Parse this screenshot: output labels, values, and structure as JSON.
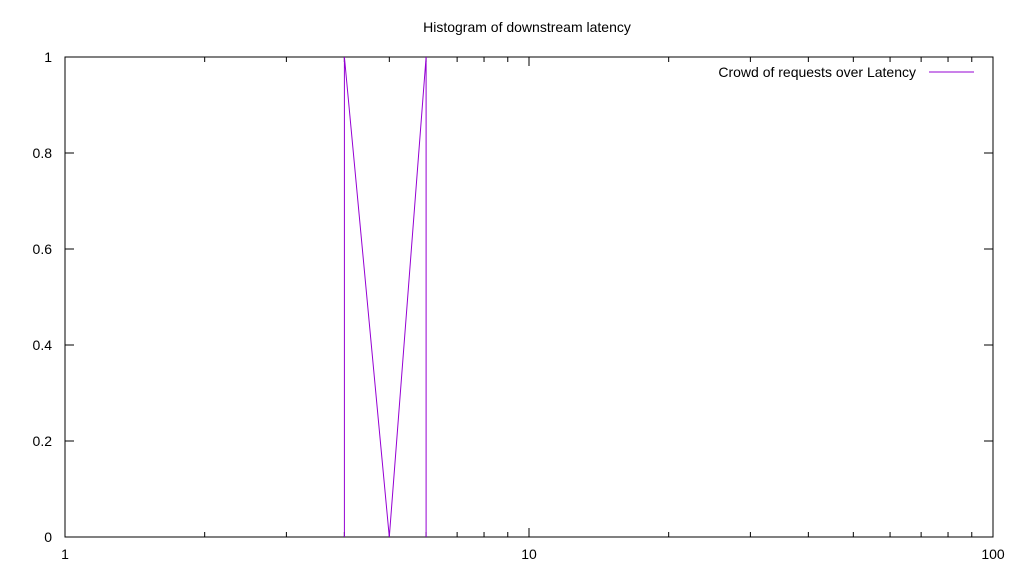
{
  "chart_data": {
    "type": "line",
    "title": "Histogram of downstream latency",
    "xlabel": "",
    "ylabel": "",
    "x_scale": "log",
    "xlim": [
      1,
      100
    ],
    "ylim": [
      0,
      1
    ],
    "x_ticks": [
      "1",
      "10",
      "100"
    ],
    "y_ticks": [
      "0",
      "0.2",
      "0.4",
      "0.6",
      "0.8",
      "1"
    ],
    "grid": false,
    "legend_position": "top-right",
    "series": [
      {
        "name": "Crowd of requests over Latency",
        "color": "#9400d3",
        "x": [
          4,
          4,
          5,
          6,
          6
        ],
        "y": [
          0,
          1,
          0,
          1,
          0
        ]
      }
    ]
  }
}
